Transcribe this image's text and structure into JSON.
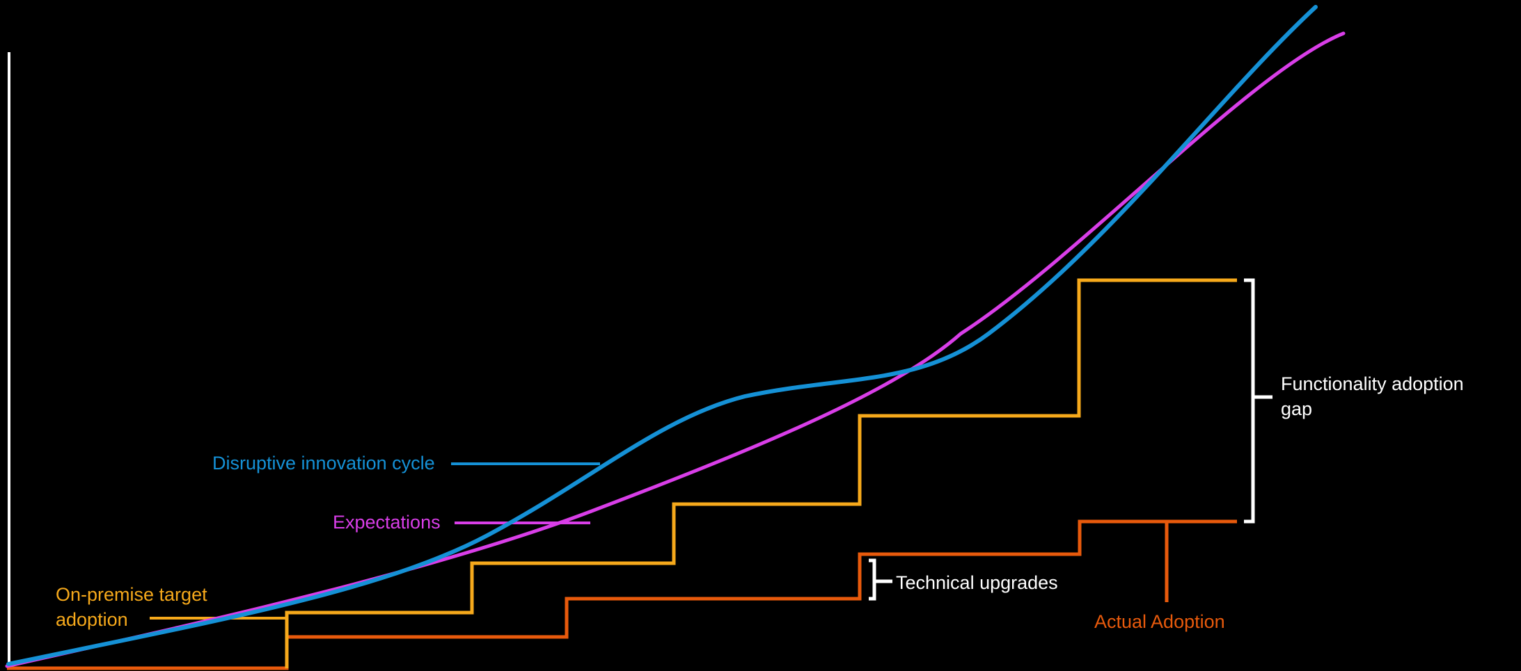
{
  "colors": {
    "background": "#000000",
    "disruptive": "#1591d6",
    "expectations": "#d93ee8",
    "onprem": "#f6a91b",
    "actual": "#e85a0c",
    "bracket": "#ffffff",
    "axis": "#ffffff"
  },
  "labels": {
    "disruptive": "Disruptive innovation cycle",
    "expectations": "Expectations",
    "onprem_line1": "On-premise target",
    "onprem_line2": "adoption",
    "technical": "Technical upgrades",
    "actual": "Actual Adoption",
    "gap_line1": "Functionality adoption",
    "gap_line2": "gap"
  }
}
